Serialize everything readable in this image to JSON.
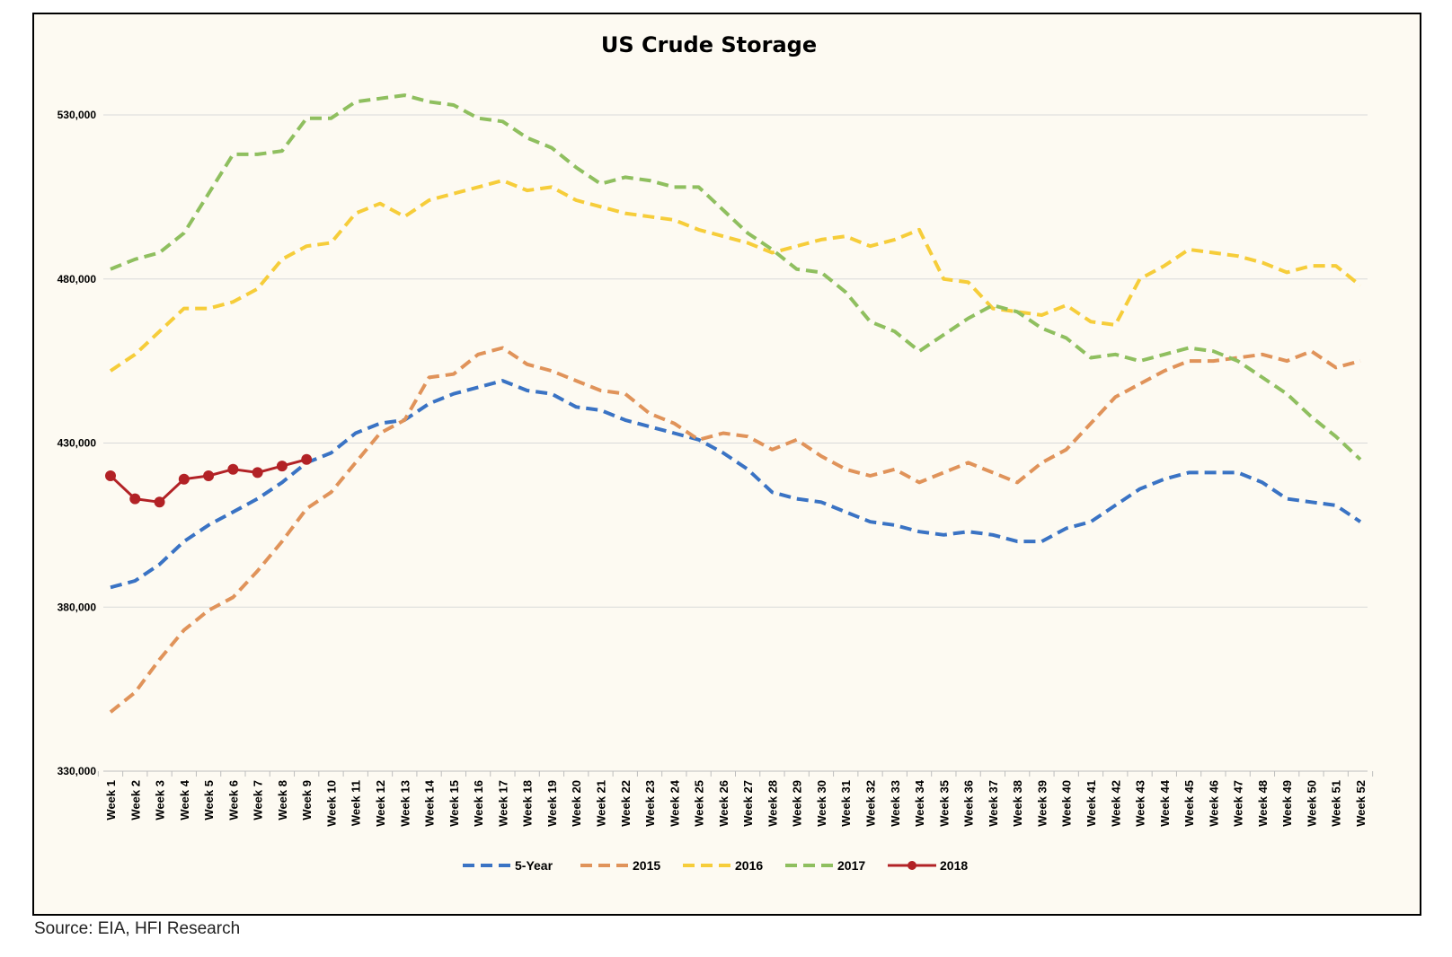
{
  "source_note": "Source: EIA, HFI Research",
  "chart_data": {
    "type": "line",
    "title": "US Crude Storage",
    "xlabel": "",
    "ylabel": "",
    "ylim": [
      330000,
      530000
    ],
    "yticks": [
      330000,
      380000,
      430000,
      480000,
      530000
    ],
    "ytick_labels": [
      "330,000",
      "380,000",
      "430,000",
      "480,000",
      "530,000"
    ],
    "grid": true,
    "legend_position": "bottom",
    "categories": [
      "Week 1",
      "Week 2",
      "Week 3",
      "Week 4",
      "Week 5",
      "Week 6",
      "Week 7",
      "Week 8",
      "Week 9",
      "Week 10",
      "Week 11",
      "Week 12",
      "Week 13",
      "Week 14",
      "Week 15",
      "Week 16",
      "Week 17",
      "Week 18",
      "Week 19",
      "Week 20",
      "Week 21",
      "Week 22",
      "Week 23",
      "Week 24",
      "Week 25",
      "Week 26",
      "Week 27",
      "Week 28",
      "Week 29",
      "Week 30",
      "Week 31",
      "Week 32",
      "Week 33",
      "Week 34",
      "Week 35",
      "Week 36",
      "Week 37",
      "Week 38",
      "Week 39",
      "Week 40",
      "Week 41",
      "Week 42",
      "Week 43",
      "Week 44",
      "Week 45",
      "Week 46",
      "Week 47",
      "Week 48",
      "Week 49",
      "Week 50",
      "Week 51",
      "Week 52"
    ],
    "series": [
      {
        "name": "5-Year",
        "color": "#3a73c4",
        "style": "dashed",
        "values": [
          386000,
          388000,
          393000,
          400000,
          405000,
          409000,
          413000,
          418000,
          424000,
          427000,
          433000,
          436000,
          437000,
          442000,
          445000,
          447000,
          449000,
          446000,
          445000,
          441000,
          440000,
          437000,
          435000,
          433000,
          431000,
          427000,
          422000,
          415000,
          413000,
          412000,
          409000,
          406000,
          405000,
          403000,
          402000,
          403000,
          402000,
          400000,
          400000,
          404000,
          406000,
          411000,
          416000,
          419000,
          421000,
          421000,
          421000,
          418000,
          413000,
          412000,
          411000,
          406000
        ]
      },
      {
        "name": "2015",
        "color": "#e0935a",
        "style": "dashed",
        "values": [
          348000,
          354000,
          364000,
          373000,
          379000,
          383000,
          391000,
          400000,
          410000,
          415000,
          424000,
          433000,
          437000,
          450000,
          451000,
          457000,
          459000,
          454000,
          452000,
          449000,
          446000,
          445000,
          439000,
          436000,
          431000,
          433000,
          432000,
          428000,
          431000,
          426000,
          422000,
          420000,
          422000,
          418000,
          421000,
          424000,
          421000,
          418000,
          424000,
          428000,
          436000,
          444000,
          448000,
          452000,
          455000,
          455000,
          456000,
          457000,
          455000,
          458000,
          453000,
          455000
        ]
      },
      {
        "name": "2016",
        "color": "#f6cd3a",
        "style": "dashed",
        "values": [
          452000,
          457000,
          464000,
          471000,
          471000,
          473000,
          477000,
          486000,
          490000,
          491000,
          500000,
          503000,
          499000,
          504000,
          506000,
          508000,
          510000,
          507000,
          508000,
          504000,
          502000,
          500000,
          499000,
          498000,
          495000,
          493000,
          491000,
          488000,
          490000,
          492000,
          493000,
          490000,
          492000,
          495000,
          480000,
          479000,
          471000,
          470000,
          469000,
          472000,
          467000,
          466000,
          480000,
          484000,
          489000,
          488000,
          487000,
          485000,
          482000,
          484000,
          484000,
          478000
        ]
      },
      {
        "name": "2017",
        "color": "#8fbf5f",
        "style": "dashed",
        "values": [
          483000,
          486000,
          488000,
          494000,
          506000,
          518000,
          518000,
          519000,
          529000,
          529000,
          534000,
          535000,
          536000,
          534000,
          533000,
          529000,
          528000,
          523000,
          520000,
          514000,
          509000,
          511000,
          510000,
          508000,
          508000,
          501000,
          494000,
          489000,
          483000,
          482000,
          476000,
          467000,
          464000,
          458000,
          463000,
          468000,
          472000,
          470000,
          465000,
          462000,
          456000,
          457000,
          455000,
          457000,
          459000,
          458000,
          455000,
          450000,
          445000,
          438000,
          432000,
          425000
        ]
      },
      {
        "name": "2018",
        "color": "#b22226",
        "style": "solid",
        "markers": true,
        "values": [
          420000,
          413000,
          412000,
          419000,
          420000,
          422000,
          421000,
          423000,
          425000,
          null,
          null,
          null,
          null,
          null,
          null,
          null,
          null,
          null,
          null,
          null,
          null,
          null,
          null,
          null,
          null,
          null,
          null,
          null,
          null,
          null,
          null,
          null,
          null,
          null,
          null,
          null,
          null,
          null,
          null,
          null,
          null,
          null,
          null,
          null,
          null,
          null,
          null,
          null,
          null,
          null,
          null,
          null
        ]
      }
    ]
  }
}
